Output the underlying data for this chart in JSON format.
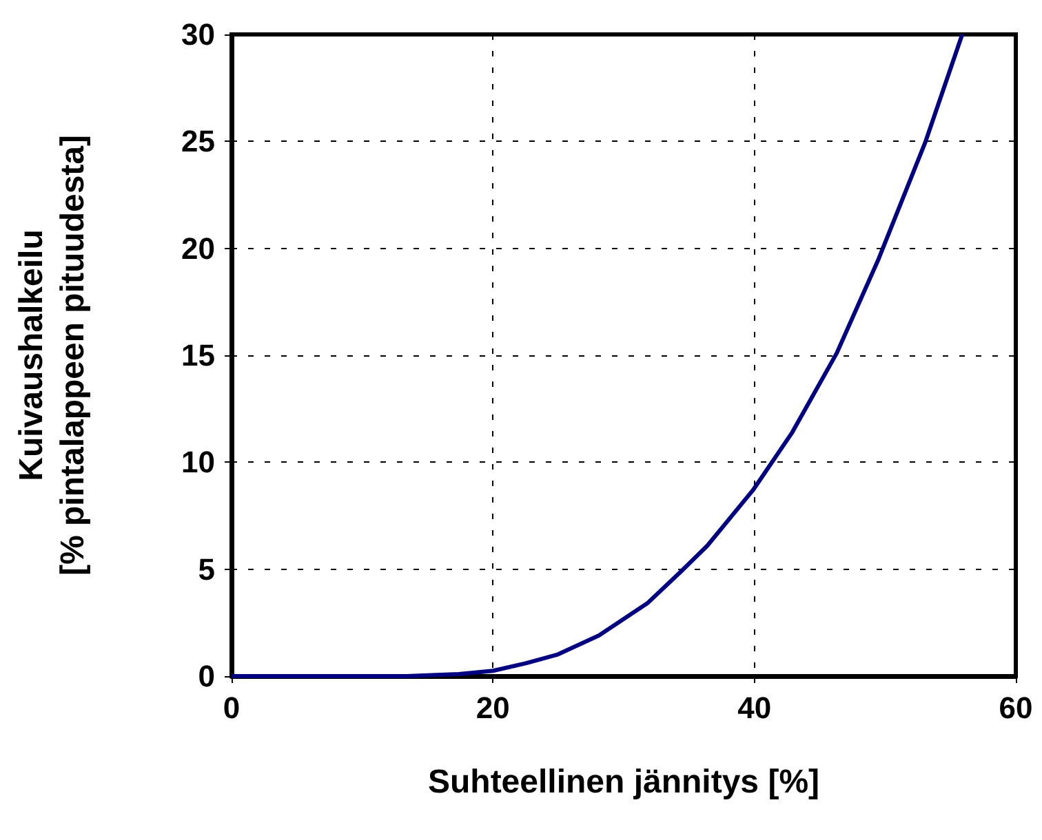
{
  "chart_data": {
    "type": "line",
    "xlabel": "Suhteellinen jännitys [%]",
    "ylabel": "Kuivaushalkeilu\n[% pintalappeen pituudesta]",
    "x": [
      0,
      5,
      10,
      13.4,
      17.4,
      20,
      22.5,
      24.9,
      28.1,
      31.8,
      34.4,
      36.4,
      39.9,
      42.9,
      46.3,
      49.5,
      53.1,
      55.9
    ],
    "series": [
      {
        "color": "#000080",
        "values": [
          0,
          0,
          0,
          0,
          0.1,
          0.25,
          0.6,
          1.0,
          1.9,
          3.4,
          4.9,
          6.1,
          8.7,
          11.4,
          15.1,
          19.5,
          25.0,
          30.0
        ]
      }
    ],
    "xlim": [
      0,
      60
    ],
    "xticks": [
      0,
      20,
      40,
      60
    ],
    "ylim": [
      0,
      30
    ],
    "yticks": [
      0,
      5,
      10,
      15,
      20,
      25,
      30
    ],
    "grid": true,
    "marker": "none",
    "line_style": "solid"
  }
}
